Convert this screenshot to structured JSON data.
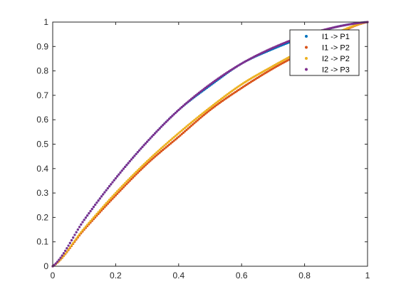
{
  "chart_data": {
    "type": "scatter",
    "title": "",
    "xlabel": "",
    "ylabel": "",
    "xlim": [
      0,
      1
    ],
    "ylim": [
      0,
      1
    ],
    "grid": false,
    "legend_location": "top-right",
    "x_ticks": [
      0,
      0.2,
      0.4,
      0.6,
      0.8,
      1
    ],
    "x_tick_labels": [
      "0",
      "0.2",
      "0.4",
      "0.6",
      "0.8",
      "1"
    ],
    "y_ticks": [
      0,
      0.1,
      0.2,
      0.3,
      0.4,
      0.5,
      0.6,
      0.7,
      0.8,
      0.9,
      1
    ],
    "y_tick_labels": [
      "0",
      "0.1",
      "0.2",
      "0.3",
      "0.4",
      "0.5",
      "0.6",
      "0.7",
      "0.8",
      "0.9",
      "1"
    ],
    "x": [
      0,
      0.1,
      0.2,
      0.3,
      0.4,
      0.5,
      0.6,
      0.7,
      0.8,
      0.9,
      1
    ],
    "series": [
      {
        "name": "I1 -> P1",
        "color": "#0072BD",
        "values": [
          0,
          0.19,
          0.36,
          0.51,
          0.64,
          0.74,
          0.83,
          0.89,
          0.94,
          0.98,
          1
        ]
      },
      {
        "name": "I1 -> P2",
        "color": "#D95319",
        "values": [
          0,
          0.15,
          0.29,
          0.42,
          0.53,
          0.64,
          0.73,
          0.81,
          0.88,
          0.95,
          1
        ]
      },
      {
        "name": "I2 -> P2",
        "color": "#EDB120",
        "values": [
          0,
          0.155,
          0.3,
          0.43,
          0.545,
          0.65,
          0.745,
          0.82,
          0.89,
          0.955,
          1
        ]
      },
      {
        "name": "I2 -> P3",
        "color": "#7E2F8E",
        "values": [
          0,
          0.19,
          0.36,
          0.51,
          0.64,
          0.745,
          0.83,
          0.895,
          0.945,
          0.98,
          1
        ]
      }
    ]
  }
}
